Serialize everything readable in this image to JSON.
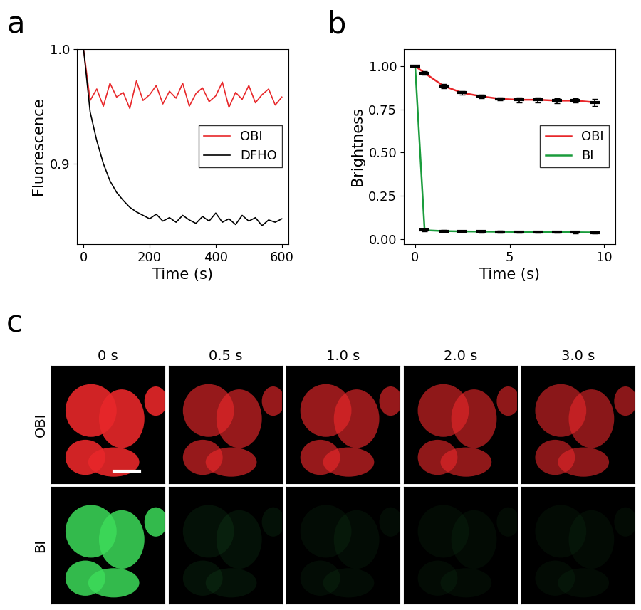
{
  "panel_labels": [
    "a",
    "b",
    "c"
  ],
  "chart_data": [
    {
      "type": "line",
      "x_label": "Time (s)",
      "y_label": "Fluorescence",
      "x": [
        0,
        20,
        40,
        60,
        80,
        100,
        120,
        140,
        160,
        180,
        200,
        220,
        240,
        260,
        280,
        300,
        320,
        340,
        360,
        380,
        400,
        420,
        440,
        460,
        480,
        500,
        520,
        540,
        560,
        580,
        600
      ],
      "series": [
        {
          "name": "OBI",
          "color": "#e8272a",
          "values": [
            1.0,
            0.955,
            0.965,
            0.95,
            0.97,
            0.958,
            0.962,
            0.948,
            0.972,
            0.955,
            0.96,
            0.968,
            0.952,
            0.963,
            0.957,
            0.97,
            0.95,
            0.961,
            0.966,
            0.954,
            0.959,
            0.971,
            0.949,
            0.962,
            0.956,
            0.968,
            0.953,
            0.96,
            0.965,
            0.951,
            0.958
          ]
        },
        {
          "name": "DFHO",
          "color": "#000000",
          "values": [
            1.0,
            0.945,
            0.92,
            0.9,
            0.885,
            0.875,
            0.868,
            0.862,
            0.858,
            0.855,
            0.852,
            0.856,
            0.85,
            0.853,
            0.849,
            0.855,
            0.851,
            0.848,
            0.854,
            0.85,
            0.857,
            0.849,
            0.852,
            0.847,
            0.855,
            0.85,
            0.853,
            0.846,
            0.851,
            0.849,
            0.852
          ]
        }
      ],
      "xlim": [
        -20,
        620
      ],
      "xticks": [
        0,
        200,
        400,
        600
      ],
      "ylim": [
        0.83,
        1.0
      ],
      "yticks": [
        {
          "value": 0.9,
          "label": "0.9"
        },
        {
          "value": 1.0,
          "label": "1.0"
        }
      ],
      "legend": "center right"
    },
    {
      "type": "line",
      "x_label": "Time (s)",
      "y_label": "Brightness",
      "x": [
        0,
        0.5,
        1.5,
        2.5,
        3.5,
        4.5,
        5.5,
        6.5,
        7.5,
        8.5,
        9.5
      ],
      "series": [
        {
          "name": "OBI",
          "color": "#e8272a",
          "marker": "_",
          "values": [
            1.0,
            0.96,
            0.885,
            0.845,
            0.825,
            0.81,
            0.805,
            0.805,
            0.8,
            0.8,
            0.79
          ],
          "errors": [
            0,
            0.012,
            0.012,
            0.012,
            0.01,
            0.01,
            0.015,
            0.015,
            0.015,
            0.012,
            0.02
          ]
        },
        {
          "name": "BI",
          "color": "#1a9c3c",
          "marker": "_",
          "values": [
            1.0,
            0.05,
            0.045,
            0.043,
            0.042,
            0.041,
            0.04,
            0.04,
            0.039,
            0.038,
            0.037
          ],
          "errors": [
            0,
            0.005,
            0.005,
            0.005,
            0.005,
            0.005,
            0.005,
            0.005,
            0.005,
            0.005,
            0.005
          ]
        }
      ],
      "xlim": [
        -0.6,
        10.6
      ],
      "xticks": [
        0,
        5,
        10
      ],
      "ylim": [
        -0.03,
        1.1
      ],
      "yticks": [
        {
          "value": 0.0,
          "label": "0.00"
        },
        {
          "value": 0.25,
          "label": "0.25"
        },
        {
          "value": 0.5,
          "label": "0.50"
        },
        {
          "value": 0.75,
          "label": "0.75"
        },
        {
          "value": 1.0,
          "label": "1.00"
        }
      ],
      "legend": "center right"
    }
  ],
  "images": {
    "columns": [
      "0 s",
      "0.5 s",
      "1.0 s",
      "2.0 s",
      "3.0 s"
    ],
    "rows": [
      {
        "name": "OBI",
        "color": "#e8272a"
      },
      {
        "name": "BI",
        "color": "#3ddc5a"
      }
    ]
  }
}
